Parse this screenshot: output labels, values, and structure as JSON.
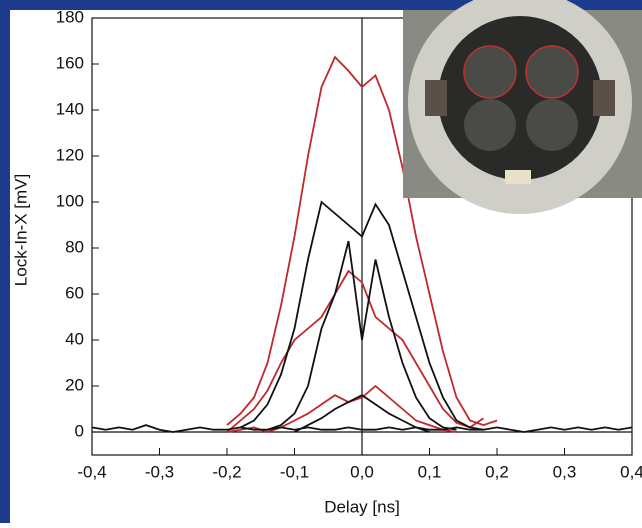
{
  "chart_data": {
    "type": "line",
    "xlabel": "Delay [ns]",
    "ylabel": "Lock-In-X [mV]",
    "x": [
      -0.4,
      -0.38,
      -0.36,
      -0.34,
      -0.32,
      -0.3,
      -0.28,
      -0.26,
      -0.24,
      -0.22,
      -0.2,
      -0.18,
      -0.16,
      -0.14,
      -0.12,
      -0.1,
      -0.08,
      -0.06,
      -0.04,
      -0.02,
      0,
      0.02,
      0.04,
      0.06,
      0.08,
      0.1,
      0.12,
      0.14,
      0.16,
      0.18,
      0.2,
      0.22,
      0.24,
      0.26,
      0.28,
      0.3,
      0.32,
      0.34,
      0.36,
      0.38,
      0.4
    ],
    "series": [
      {
        "color": "#c0282d",
        "values": [
          null,
          null,
          null,
          null,
          null,
          null,
          null,
          null,
          null,
          null,
          3,
          8,
          15,
          30,
          55,
          85,
          120,
          150,
          163,
          157,
          150,
          155,
          140,
          115,
          85,
          60,
          35,
          15,
          5,
          3,
          5,
          null,
          null,
          null,
          null,
          null,
          null,
          null,
          null,
          null,
          null
        ]
      },
      {
        "color": "#c0282d",
        "values": [
          null,
          null,
          null,
          null,
          null,
          null,
          null,
          null,
          null,
          null,
          0,
          5,
          10,
          18,
          30,
          40,
          45,
          50,
          60,
          70,
          65,
          50,
          45,
          40,
          30,
          20,
          10,
          4,
          2,
          6,
          null,
          null,
          null,
          null,
          null,
          null,
          null,
          null,
          null,
          null,
          null
        ]
      },
      {
        "color": "#c0282d",
        "values": [
          null,
          null,
          null,
          null,
          null,
          null,
          null,
          null,
          null,
          null,
          0,
          1,
          2,
          0,
          2,
          5,
          8,
          12,
          16,
          13,
          15,
          20,
          15,
          10,
          5,
          3,
          1,
          0,
          null,
          null,
          null,
          null,
          null,
          null,
          null,
          null,
          null,
          null,
          null,
          null,
          null
        ]
      },
      {
        "color": "#111111",
        "values": [
          null,
          null,
          null,
          null,
          null,
          null,
          null,
          null,
          null,
          null,
          null,
          2,
          5,
          12,
          25,
          45,
          75,
          100,
          95,
          90,
          85,
          99,
          90,
          70,
          50,
          30,
          15,
          5,
          2,
          1,
          null,
          null,
          null,
          null,
          null,
          null,
          null,
          null,
          null,
          null,
          null
        ]
      },
      {
        "color": "#111111",
        "values": [
          null,
          null,
          null,
          null,
          null,
          null,
          null,
          null,
          null,
          null,
          null,
          null,
          null,
          1,
          3,
          8,
          20,
          45,
          60,
          83,
          40,
          75,
          50,
          30,
          15,
          6,
          2,
          1,
          null,
          null,
          null,
          null,
          null,
          null,
          null,
          null,
          null,
          null,
          null,
          null,
          null
        ]
      },
      {
        "color": "#111111",
        "values": [
          null,
          null,
          null,
          null,
          null,
          null,
          null,
          null,
          null,
          null,
          null,
          null,
          null,
          null,
          null,
          0,
          3,
          6,
          10,
          13,
          16,
          12,
          8,
          5,
          2,
          0,
          null,
          null,
          null,
          null,
          null,
          null,
          null,
          null,
          null,
          null,
          null,
          null,
          null,
          null,
          null
        ]
      },
      {
        "color": "#111111",
        "values": [
          2,
          1,
          2,
          1,
          3,
          1,
          0,
          1,
          2,
          1,
          1,
          2,
          1,
          1,
          2,
          1,
          2,
          1,
          1,
          2,
          1,
          1,
          2,
          1,
          2,
          1,
          1,
          2,
          1,
          1,
          2,
          1,
          0,
          1,
          2,
          1,
          2,
          1,
          2,
          1,
          2
        ]
      }
    ],
    "xlim": [
      -0.4,
      0.4
    ],
    "xticks": [
      {
        "value": -0.4,
        "label": "-0,4"
      },
      {
        "value": -0.3,
        "label": "-0,3"
      },
      {
        "value": -0.2,
        "label": "-0,2"
      },
      {
        "value": -0.1,
        "label": "-0,1"
      },
      {
        "value": 0,
        "label": "0,0"
      },
      {
        "value": 0.1,
        "label": "0,1"
      },
      {
        "value": 0.2,
        "label": "0,2"
      },
      {
        "value": 0.3,
        "label": "0,3"
      },
      {
        "value": 0.4,
        "label": "0,4"
      }
    ],
    "ylim": [
      -10,
      180
    ],
    "yticks": [
      0,
      20,
      40,
      60,
      80,
      100,
      120,
      140,
      160,
      180
    ]
  }
}
